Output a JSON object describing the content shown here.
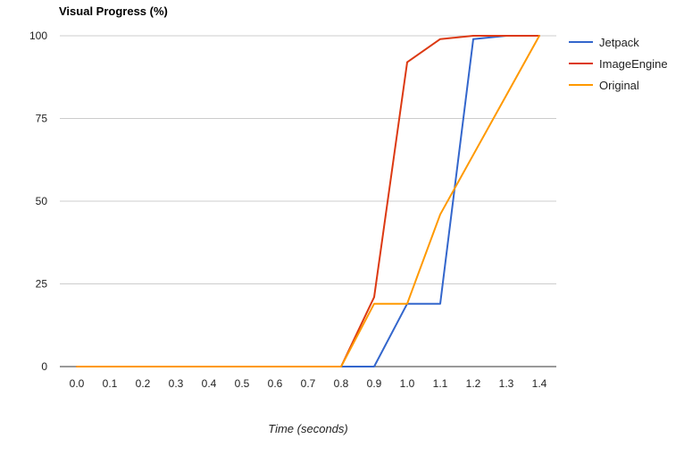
{
  "chart_data": {
    "type": "line",
    "title": "Visual Progress (%)",
    "xlabel": "Time (seconds)",
    "ylabel": "",
    "x": [
      0.0,
      0.1,
      0.2,
      0.3,
      0.4,
      0.5,
      0.6,
      0.7,
      0.8,
      0.9,
      1.0,
      1.1,
      1.2,
      1.3,
      1.4
    ],
    "x_tick_labels": [
      "0.0",
      "0.1",
      "0.2",
      "0.3",
      "0.4",
      "0.5",
      "0.6",
      "0.7",
      "0.8",
      "0.9",
      "1.0",
      "1.1",
      "1.2",
      "1.3",
      "1.4"
    ],
    "y_ticks": [
      0,
      25,
      50,
      75,
      100
    ],
    "y_tick_labels": [
      "0",
      "25",
      "50",
      "75",
      "100"
    ],
    "xlim": [
      0.0,
      1.4
    ],
    "ylim": [
      0,
      100
    ],
    "grid": true,
    "legend_position": "right",
    "series": [
      {
        "name": "Jetpack",
        "color": "#3366cc",
        "values": [
          0,
          0,
          0,
          0,
          0,
          0,
          0,
          0,
          0,
          0,
          19,
          19,
          99,
          100,
          100
        ]
      },
      {
        "name": "ImageEngine",
        "color": "#dc3912",
        "values": [
          0,
          0,
          0,
          0,
          0,
          0,
          0,
          0,
          0,
          21,
          92,
          99,
          100,
          100,
          100
        ]
      },
      {
        "name": "Original",
        "color": "#ff9900",
        "values": [
          0,
          0,
          0,
          0,
          0,
          0,
          0,
          0,
          0,
          19,
          19,
          46,
          64,
          82,
          100
        ]
      }
    ]
  }
}
